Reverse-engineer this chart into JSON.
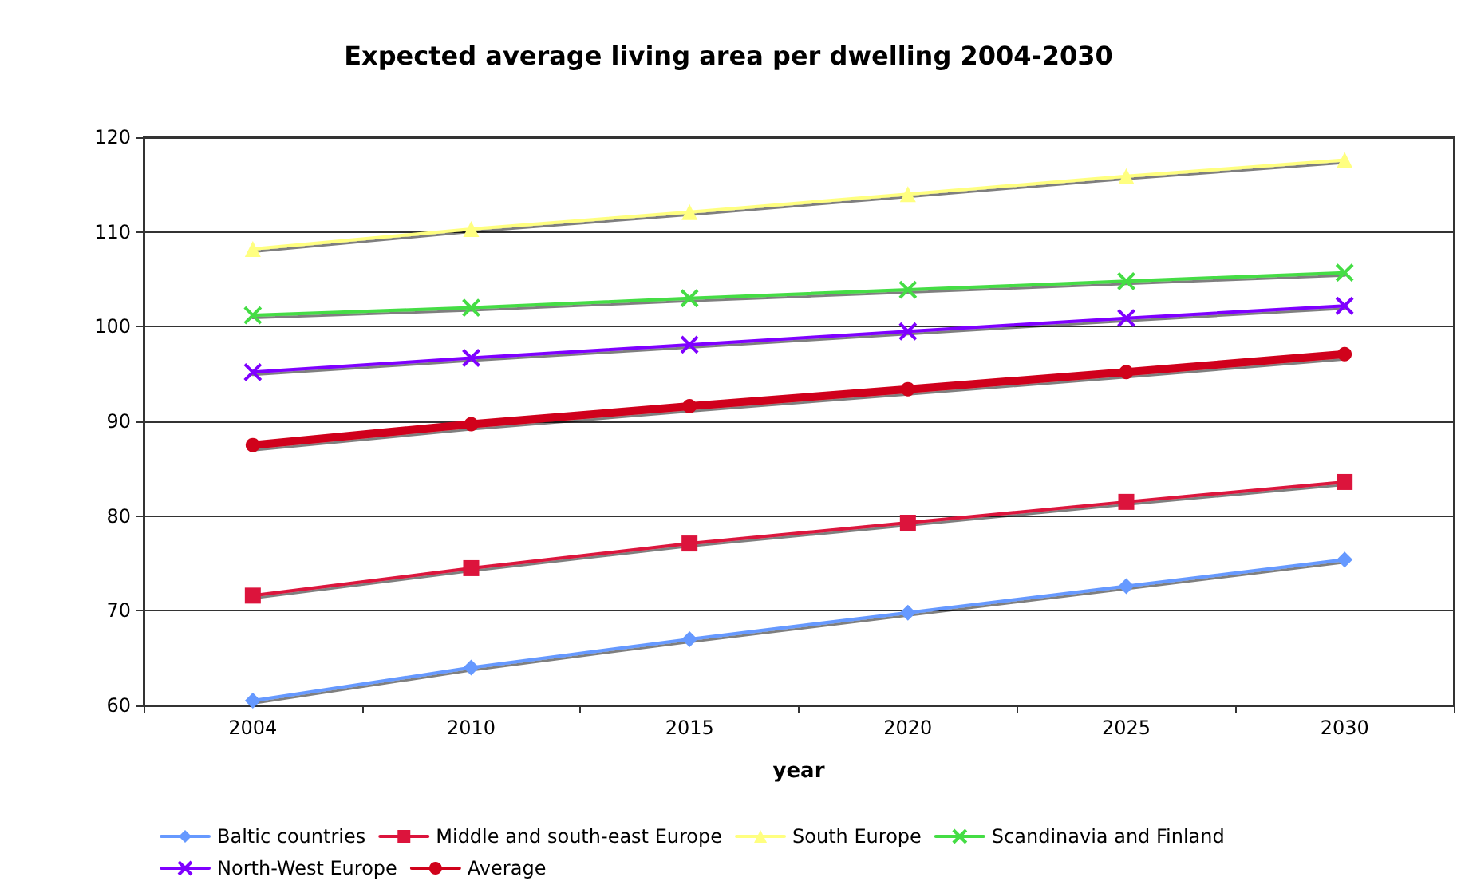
{
  "chart_data": {
    "type": "line",
    "title": "Expected average living area per dwelling 2004-2030",
    "xlabel": "year",
    "categories": [
      "2004",
      "2010",
      "2015",
      "2020",
      "2025",
      "2030"
    ],
    "series": [
      {
        "name": "Baltic countries",
        "color": "#6699ff",
        "marker": "diamond",
        "values": [
          60.5,
          64,
          67,
          69.8,
          72.6,
          75.4
        ]
      },
      {
        "name": "Middle and south-east Europe",
        "color": "#dc143c",
        "marker": "square",
        "values": [
          71.6,
          74.5,
          77.1,
          79.3,
          81.5,
          83.6
        ]
      },
      {
        "name": "South Europe",
        "color": "#ffff80",
        "marker": "triangle",
        "values": [
          108.2,
          110.3,
          112.1,
          114,
          115.9,
          117.6
        ]
      },
      {
        "name": "Scandinavia and Finland",
        "color": "#44dd44",
        "marker": "cross",
        "values": [
          101.2,
          102,
          103,
          103.9,
          104.8,
          105.7
        ]
      },
      {
        "name": "North-West Europe",
        "color": "#7f00ff",
        "marker": "cross",
        "values": [
          95.2,
          96.7,
          98.1,
          99.5,
          100.9,
          102.2
        ]
      },
      {
        "name": "Average",
        "color": "#d0021b",
        "marker": "circle",
        "values": [
          87.5,
          89.7,
          91.6,
          93.4,
          95.2,
          97.1
        ]
      }
    ],
    "ylim": [
      60,
      120
    ],
    "yticks": [
      60,
      70,
      80,
      90,
      100,
      110,
      120
    ],
    "grid": "y",
    "legend": "bottom",
    "line_style": "solid"
  }
}
